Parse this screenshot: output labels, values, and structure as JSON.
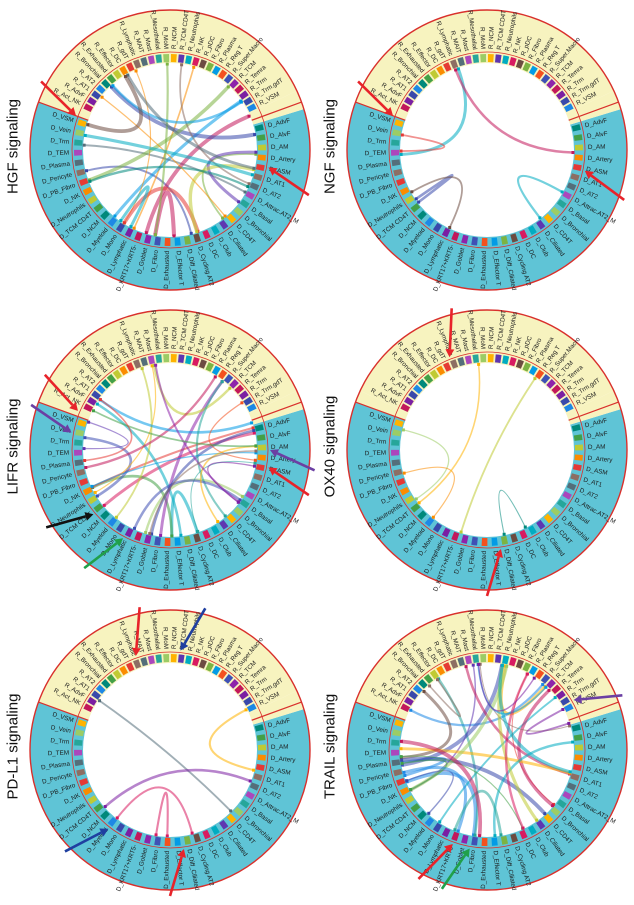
{
  "panels": [
    {
      "title": "HGF signaling"
    },
    {
      "title": "NGF signaling"
    },
    {
      "title": "LIFR signaling"
    },
    {
      "title": "OX40 signaling"
    },
    {
      "title": "PD-L1 signaling"
    },
    {
      "title": "TRAIL signaling"
    }
  ],
  "r_labels": [
    "R_Act_NK",
    "R_AdvF",
    "R_AT1",
    "R_AT2",
    "R_Bronchial",
    "R_Exhausted",
    "R_Effector",
    "R_DC",
    "R_gdT",
    "R_Lymphatic",
    "R_MAIT",
    "R_Mast",
    "R_Mesothelial",
    "R_MoM",
    "R_NCM",
    "R_TCM CD4T",
    "R_Neutrophils",
    "R_NK",
    "R_pDC",
    "R_Fibro",
    "R_Plasma",
    "R_Reg T",
    "R_Super.Macro",
    "R_TCM",
    "R_Temra",
    "R_Trm",
    "R_Trm.gdT",
    "R_VSM"
  ],
  "d_labels": [
    "D_AdvF",
    "D_AlvF",
    "D_AM",
    "D_Artery",
    "D_ASM",
    "D_AT1",
    "D_AT2",
    "D_Attrac.AT2_M",
    "D_Basal",
    "D_Bronchial",
    "D_CD4T",
    "D_Ciliated",
    "D_Club",
    "D_DC",
    "D_Cycling AT2",
    "D_Diff_Ciliated",
    "D_Effector T",
    "D_Exhausted",
    "D_Fibro",
    "D_Goblet",
    "D_KRT17+KRT5-",
    "D_Lymphatic",
    "D_Mono",
    "D_Myeloid",
    "D_NCM",
    "D_TCM CD4T",
    "D_Neutrophils",
    "D_NK",
    "D_PB_Fibro",
    "D_Pericyte",
    "D_Plasma",
    "D_TEM",
    "D_Trm",
    "D_Vein",
    "D_VSM"
  ],
  "colors": {
    "r_sector": "#f7f3bf",
    "d_sector": "#5fc4d6",
    "border": "#d9302c",
    "arrow_red": "#e8232a",
    "arrow_blue": "#1f3fa0",
    "arrow_purple": "#6b3fa3",
    "arrow_black": "#111111",
    "arrow_green": "#20a04a"
  }
}
